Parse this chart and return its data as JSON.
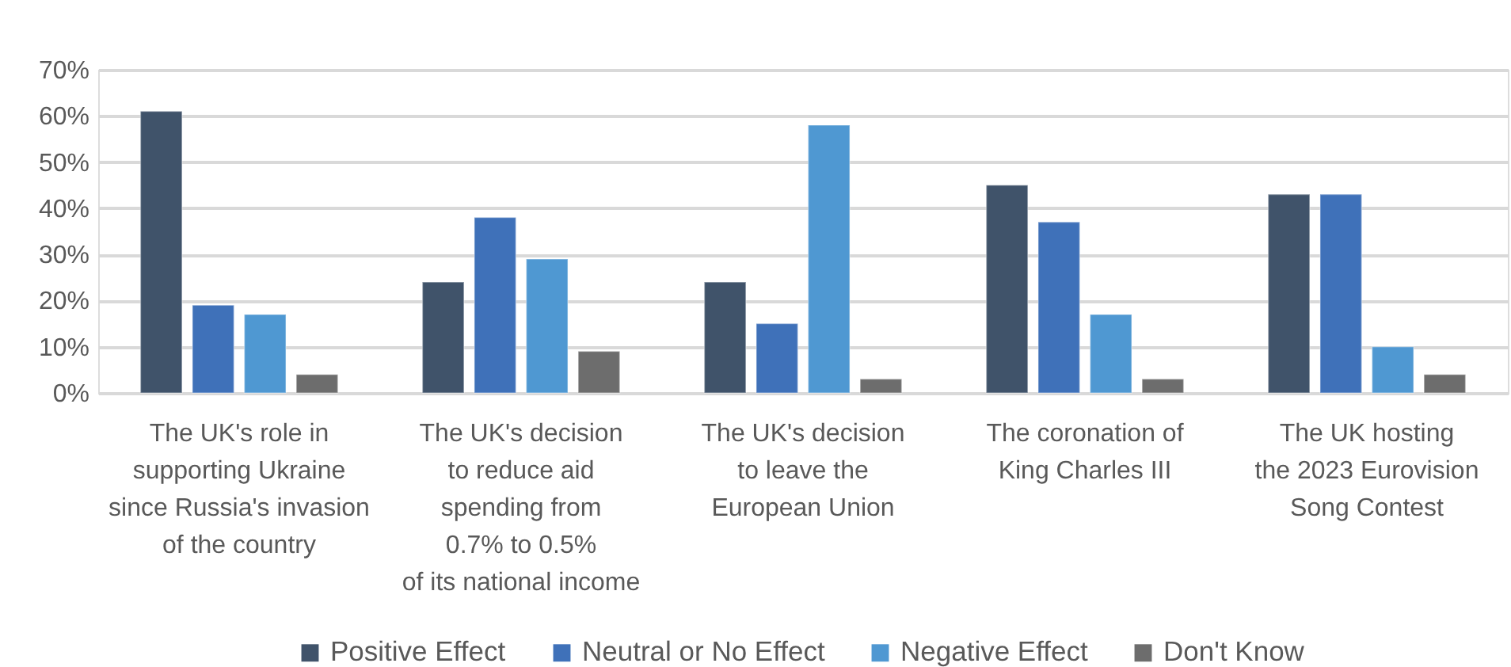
{
  "chart_data": {
    "type": "bar",
    "categories": [
      "The UK's role in\nsupporting Ukraine\nsince Russia's invasion\nof the country",
      "The UK's decision\nto reduce aid\nspending from\n0.7% to 0.5%\nof its national income",
      "The UK's decision\nto leave the\nEuropean Union",
      "The coronation of\nKing Charles III",
      "The UK hosting\nthe 2023 Eurovision\nSong Contest"
    ],
    "series": [
      {
        "name": "Positive Effect",
        "color": "#40536a",
        "values": [
          61,
          24,
          24,
          45,
          43
        ]
      },
      {
        "name": "Neutral or No Effect",
        "color": "#3f71b9",
        "values": [
          19,
          38,
          15,
          37,
          43
        ]
      },
      {
        "name": "Negative Effect",
        "color": "#4f98d2",
        "values": [
          17,
          29,
          58,
          17,
          10
        ]
      },
      {
        "name": "Don't Know",
        "color": "#6d6d6d",
        "values": [
          4,
          9,
          3,
          3,
          4
        ]
      }
    ],
    "ylim": [
      0,
      70
    ],
    "yticks": [
      {
        "value": 0,
        "label": "0%"
      },
      {
        "value": 10,
        "label": "10%"
      },
      {
        "value": 20,
        "label": "20%"
      },
      {
        "value": 30,
        "label": "30%"
      },
      {
        "value": 40,
        "label": "40%"
      },
      {
        "value": 50,
        "label": "50%"
      },
      {
        "value": 60,
        "label": "60%"
      },
      {
        "value": 70,
        "label": "70%"
      }
    ],
    "grid": "y",
    "legend": "bottom"
  }
}
